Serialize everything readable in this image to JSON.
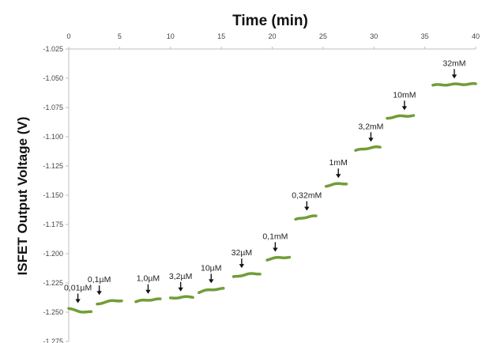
{
  "chart_data": {
    "type": "scatter",
    "xlabel": "Time (min)",
    "ylabel": "ISFET Output Voltage (V)",
    "xlim": [
      0,
      40
    ],
    "ylim": [
      -1.275,
      -1.025
    ],
    "x_ticks": [
      "0",
      "5",
      "10",
      "15",
      "20",
      "25",
      "30",
      "35",
      "40"
    ],
    "y_ticks": [
      "-1.025",
      "-1.050",
      "-1.075",
      "-1.100",
      "-1.125",
      "-1.150",
      "-1.175",
      "-1.200",
      "-1.225",
      "-1.250",
      "-1.275"
    ],
    "x_axis_position": "top",
    "grid": false,
    "marker_color": "#7aa63a",
    "segments": [
      {
        "label": "0,01µM",
        "x_start": 0.0,
        "x_end": 2.2,
        "y_start": -1.247,
        "y_end": -1.25
      },
      {
        "label": "0,1µM",
        "x_start": 2.8,
        "x_end": 5.2,
        "y_start": -1.243,
        "y_end": -1.24
      },
      {
        "label": "1,0µM",
        "x_start": 6.6,
        "x_end": 9.0,
        "y_start": -1.241,
        "y_end": -1.239
      },
      {
        "label": "3,2µM",
        "x_start": 10.0,
        "x_end": 12.2,
        "y_start": -1.238,
        "y_end": -1.237
      },
      {
        "label": "10µM",
        "x_start": 12.8,
        "x_end": 15.2,
        "y_start": -1.233,
        "y_end": -1.23
      },
      {
        "label": "32µM",
        "x_start": 16.2,
        "x_end": 18.8,
        "y_start": -1.22,
        "y_end": -1.217
      },
      {
        "label": "0,1mM",
        "x_start": 19.5,
        "x_end": 21.7,
        "y_start": -1.205,
        "y_end": -1.203
      },
      {
        "label": "0,32mM",
        "x_start": 22.3,
        "x_end": 24.3,
        "y_start": -1.171,
        "y_end": -1.168
      },
      {
        "label": "1mM",
        "x_start": 25.3,
        "x_end": 27.3,
        "y_start": -1.142,
        "y_end": -1.14
      },
      {
        "label": "3,2mM",
        "x_start": 28.2,
        "x_end": 30.6,
        "y_start": -1.112,
        "y_end": -1.109
      },
      {
        "label": "10mM",
        "x_start": 31.3,
        "x_end": 33.9,
        "y_start": -1.084,
        "y_end": -1.082
      },
      {
        "label": "32mM",
        "x_start": 35.8,
        "x_end": 40.0,
        "y_start": -1.056,
        "y_end": -1.055
      }
    ],
    "annotations": [
      {
        "text": "0,01µM",
        "x": 0.9,
        "y": -1.247
      },
      {
        "text": "0,1µM",
        "x": 3.0,
        "y": -1.24
      },
      {
        "text": "1,0µM",
        "x": 7.8,
        "y": -1.239
      },
      {
        "text": "3,2µM",
        "x": 11.0,
        "y": -1.237
      },
      {
        "text": "10µM",
        "x": 14.0,
        "y": -1.23
      },
      {
        "text": "32µM",
        "x": 17.0,
        "y": -1.217
      },
      {
        "text": "0,1mM",
        "x": 20.3,
        "y": -1.203
      },
      {
        "text": "0,32mM",
        "x": 23.4,
        "y": -1.168
      },
      {
        "text": "1mM",
        "x": 26.5,
        "y": -1.14
      },
      {
        "text": "3,2mM",
        "x": 29.7,
        "y": -1.109
      },
      {
        "text": "10mM",
        "x": 33.0,
        "y": -1.082
      },
      {
        "text": "32mM",
        "x": 37.9,
        "y": -1.055
      }
    ]
  }
}
